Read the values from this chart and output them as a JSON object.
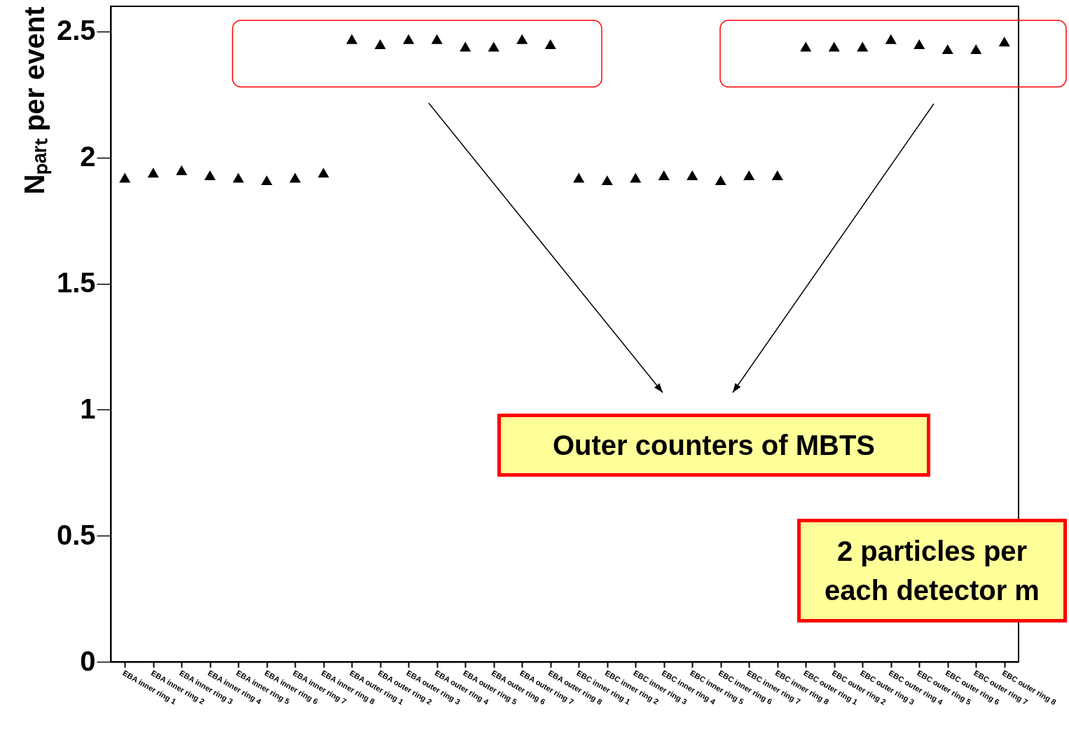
{
  "chart_data": {
    "type": "scatter",
    "ylabel": "Nₚₐᵣₜ per event",
    "categories": [
      "EBA inner ring 1",
      "EBA inner ring 2",
      "EBA inner ring 3",
      "EBA inner ring 4",
      "EBA inner ring 5",
      "EBA inner ring 6",
      "EBA inner ring 7",
      "EBA inner ring 8",
      "EBA outer ring 1",
      "EBA outer ring 2",
      "EBA outer ring 3",
      "EBA outer ring 4",
      "EBA outer ring 5",
      "EBA outer ring 6",
      "EBA outer ring 7",
      "EBA outer ring 8",
      "EBC inner ring 1",
      "EBC inner ring 2",
      "EBC inner ring 3",
      "EBC inner ring 4",
      "EBC inner ring 5",
      "EBC inner ring 6",
      "EBC inner ring 7",
      "EBC inner ring 8",
      "EBC outer ring 1",
      "EBC outer ring 2",
      "EBC outer ring 3",
      "EBC outer ring 4",
      "EBC outer ring 5",
      "EBC outer ring 6",
      "EBC outer ring 7",
      "EBC outer ring 8"
    ],
    "series": [
      {
        "color": "#000000",
        "values": [
          1.92,
          1.94,
          1.95,
          1.93,
          1.92,
          1.91,
          1.92,
          1.94,
          2.47,
          2.45,
          2.47,
          2.47,
          2.44,
          2.44,
          2.47,
          2.45,
          1.92,
          1.91,
          1.92,
          1.93,
          1.93,
          1.91,
          1.93,
          1.93,
          2.44,
          2.44,
          2.44,
          2.47,
          2.45,
          2.43,
          2.43,
          2.46
        ]
      }
    ],
    "ylim": [
      0,
      2.6
    ],
    "yticks": [
      0,
      0.5,
      1,
      1.5,
      2,
      2.5
    ],
    "marker": "triangle",
    "grid": false,
    "legend": false,
    "annotations": [
      "Outer counters of MBTS",
      "2 particles per\neach detector m"
    ]
  }
}
